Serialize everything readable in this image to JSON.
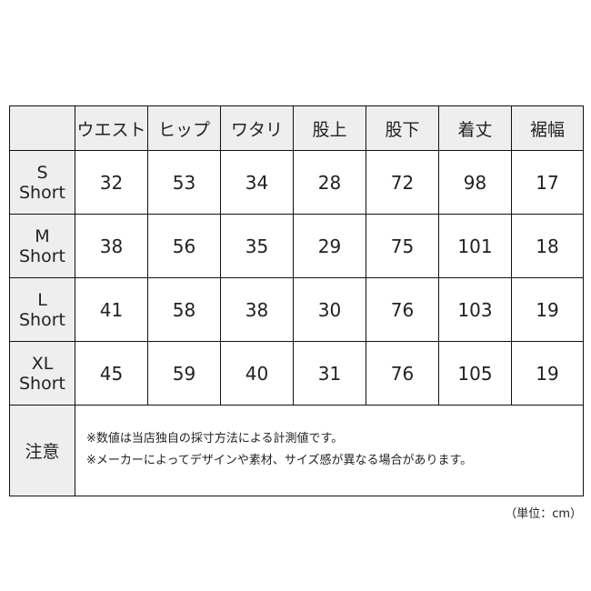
{
  "table": {
    "headers": [
      "",
      "ウエスト",
      "ヒップ",
      "ワタリ",
      "股上",
      "股下",
      "着丈",
      "裾幅"
    ],
    "rows": [
      {
        "size": "S",
        "fit": "Short",
        "values": [
          "32",
          "53",
          "34",
          "28",
          "72",
          "98",
          "17"
        ]
      },
      {
        "size": "M",
        "fit": "Short",
        "values": [
          "38",
          "56",
          "35",
          "29",
          "75",
          "101",
          "18"
        ]
      },
      {
        "size": "L",
        "fit": "Short",
        "values": [
          "41",
          "58",
          "38",
          "30",
          "76",
          "103",
          "19"
        ]
      },
      {
        "size": "XL",
        "fit": "Short",
        "values": [
          "45",
          "59",
          "40",
          "31",
          "76",
          "105",
          "19"
        ]
      }
    ],
    "note_label": "注意",
    "notes": [
      "※数値は当店独自の採寸方法による計測値です。",
      "※メーカーによってデザインや素材、サイズ感が異なる場合があります。"
    ]
  },
  "unit_label": "（単位：cm）"
}
